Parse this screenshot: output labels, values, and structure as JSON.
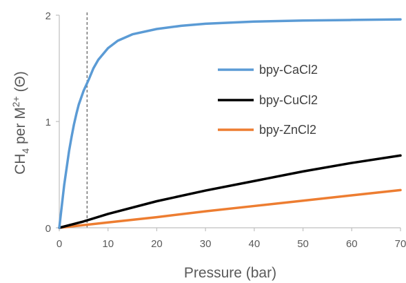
{
  "chart_data": {
    "type": "line",
    "xlabel": "Pressure (bar)",
    "ylabel": {
      "pre": "CH",
      "sub": "4",
      "mid": " per M",
      "sup": "2+",
      "post": " (Θ)"
    },
    "xlim": [
      0,
      70
    ],
    "ylim": [
      0,
      2
    ],
    "xticks": [
      0,
      10,
      20,
      30,
      40,
      50,
      60,
      70
    ],
    "yticks": [
      0,
      1,
      2
    ],
    "grid": false,
    "legend": "right-middle",
    "reference_line": {
      "x": 5.7,
      "style": "dashed",
      "color": "#595959"
    },
    "series": [
      {
        "name": "bpy-CaCl2",
        "color": "#5B9BD5",
        "x": [
          0,
          0.5,
          1,
          1.5,
          2,
          2.5,
          3,
          3.5,
          4,
          5,
          6,
          7,
          8,
          10,
          12,
          15,
          20,
          25,
          30,
          40,
          50,
          60,
          70
        ],
        "y": [
          0,
          0.2,
          0.4,
          0.56,
          0.72,
          0.85,
          0.97,
          1.07,
          1.16,
          1.29,
          1.39,
          1.5,
          1.58,
          1.69,
          1.76,
          1.82,
          1.87,
          1.9,
          1.92,
          1.94,
          1.95,
          1.955,
          1.96
        ]
      },
      {
        "name": "bpy-CuCl2",
        "color": "#000000",
        "x": [
          0,
          5,
          10,
          20,
          30,
          40,
          50,
          60,
          70
        ],
        "y": [
          0,
          0.06,
          0.13,
          0.25,
          0.35,
          0.44,
          0.53,
          0.61,
          0.68
        ]
      },
      {
        "name": "bpy-ZnCl2",
        "color": "#ED7D31",
        "x": [
          0,
          10,
          20,
          30,
          40,
          50,
          60,
          70
        ],
        "y": [
          0,
          0.05,
          0.1,
          0.155,
          0.205,
          0.255,
          0.305,
          0.355
        ]
      }
    ]
  }
}
